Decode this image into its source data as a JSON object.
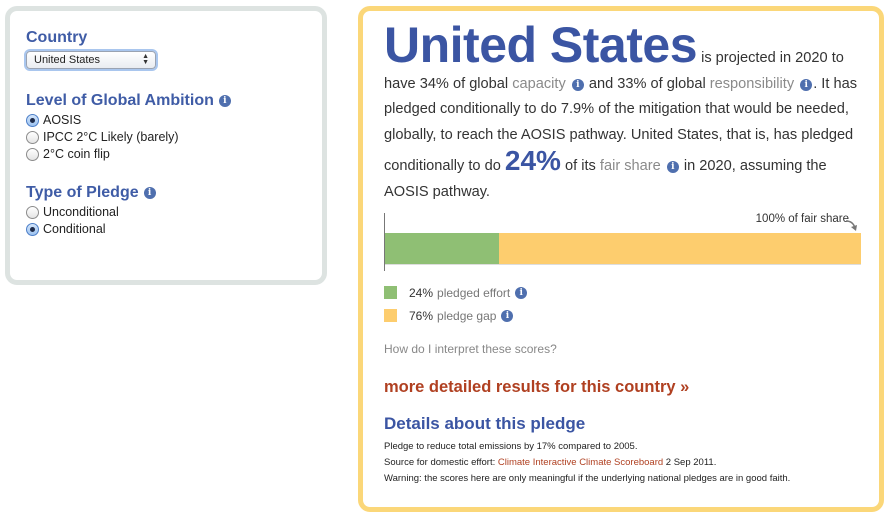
{
  "filters": {
    "country": {
      "label": "Country",
      "selected": "United States"
    },
    "ambition": {
      "label": "Level of Global Ambition",
      "options": [
        "AOSIS",
        "IPCC 2°C Likely (barely)",
        "2°C coin flip"
      ],
      "selected_index": 0
    },
    "pledge_type": {
      "label": "Type of Pledge",
      "options": [
        "Unconditional",
        "Conditional"
      ],
      "selected_index": 1
    },
    "info_icon": "i"
  },
  "result": {
    "country": "United States",
    "s1": "is projected in 2020 to have 34% of global",
    "capacity": "capacity",
    "s2": "and 33% of global",
    "responsibility": "responsibility",
    "s3": ". It has pledged conditionally to do 7.9% of the mitigation that would be needed, globally, to reach the AOSIS pathway. United States, that is, has pledged conditionally to do",
    "fair_share_pct": "24%",
    "s4": "of its",
    "fair_share": "fair share",
    "s5": "in 2020, assuming the AOSIS pathway."
  },
  "bar": {
    "caption": "100% of fair share",
    "segments": [
      {
        "key": "pledged",
        "fraction": 0.24,
        "color": "#8fbf74"
      },
      {
        "key": "gap",
        "fraction": 0.76,
        "color": "#fdcd6e"
      }
    ]
  },
  "legend": [
    {
      "pct": "24%",
      "label": "pledged effort",
      "color": "#8fbf74"
    },
    {
      "pct": "76%",
      "label": "pledge gap",
      "color": "#fdcd6e"
    }
  ],
  "interpret_link": "How do I interpret these scores?",
  "more_link": "more detailed results for this country »",
  "details": {
    "title": "Details about this pledge",
    "line1": "Pledge to reduce total emissions by 17% compared to 2005.",
    "source_prefix": "Source for domestic effort:",
    "source_link": "Climate Interactive Climate Scoreboard",
    "source_date": "2 Sep 2011.",
    "warning": "Warning: the scores here are only meaningful if the underlying national pledges are in good faith."
  },
  "colors": {
    "title_blue": "#3b55a3",
    "link_red": "#b04021",
    "left_border": "#dde3e1",
    "right_border": "#fbd779"
  }
}
